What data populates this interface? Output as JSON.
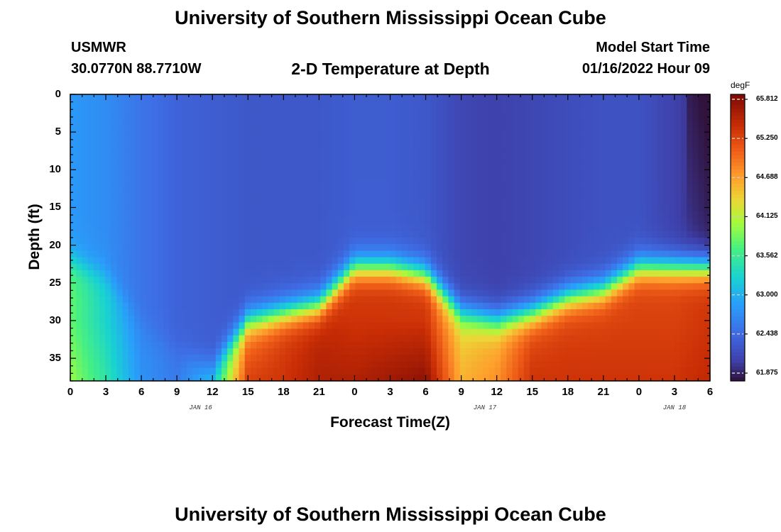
{
  "header": {
    "title": "University of Southern Mississippi Ocean Cube",
    "station": "USMWR",
    "coords": "30.0770N  88.7710W",
    "plot_title": "2-D Temperature at Depth",
    "model_start_label": "Model Start Time",
    "model_start_value": "01/16/2022 Hour 09"
  },
  "footer": {
    "title": "University of Southern Mississippi Ocean Cube"
  },
  "chart_data": {
    "type": "heatmap",
    "title": "2-D Temperature at Depth",
    "xlabel": "Forecast Time(Z)",
    "ylabel": "Depth (ft)",
    "x_ticks": [
      "0",
      "3",
      "6",
      "9",
      "12",
      "15",
      "18",
      "21",
      "0",
      "3",
      "6",
      "9",
      "12",
      "15",
      "18",
      "21",
      "0",
      "3",
      "6"
    ],
    "x_date_labels": [
      {
        "text": "JAN 16",
        "at_tick": 11
      },
      {
        "text": "JAN 17",
        "at_tick": 35
      },
      {
        "text": "JAN 18",
        "at_tick": 51
      }
    ],
    "x_range_hours": [
      0,
      54
    ],
    "y_ticks": [
      "0",
      "5",
      "10",
      "15",
      "20",
      "25",
      "30",
      "35"
    ],
    "y_range_ft": [
      0,
      38
    ],
    "colorbar": {
      "unit": "degF",
      "ticks": [
        "65.812",
        "65.250",
        "64.688",
        "64.125",
        "63.562",
        "63.000",
        "62.438",
        "61.875"
      ],
      "min": 61.8,
      "max": 65.9
    },
    "profiles_degF_by_hour": [
      {
        "hour": 0,
        "surface": 62.85,
        "deep": 63.8,
        "thermocline_ft": 22,
        "bottom_max": 64.0
      },
      {
        "hour": 3,
        "surface": 62.75,
        "deep": 63.3,
        "thermocline_ft": 24,
        "bottom_max": 63.5
      },
      {
        "hour": 6,
        "surface": 62.55,
        "deep": 62.7,
        "thermocline_ft": 30,
        "bottom_max": 62.8
      },
      {
        "hour": 9,
        "surface": 62.4,
        "deep": 62.55,
        "thermocline_ft": 34,
        "bottom_max": 62.6
      },
      {
        "hour": 12,
        "surface": 62.35,
        "deep": 62.6,
        "thermocline_ft": 36,
        "bottom_max": 63.2
      },
      {
        "hour": 15,
        "surface": 62.3,
        "deep": 64.9,
        "thermocline_ft": 30,
        "bottom_max": 65.3
      },
      {
        "hour": 18,
        "surface": 62.3,
        "deep": 65.3,
        "thermocline_ft": 29,
        "bottom_max": 65.4
      },
      {
        "hour": 21,
        "surface": 62.3,
        "deep": 65.5,
        "thermocline_ft": 28,
        "bottom_max": 65.6
      },
      {
        "hour": 24,
        "surface": 62.35,
        "deep": 65.4,
        "thermocline_ft": 23,
        "bottom_max": 65.6
      },
      {
        "hour": 27,
        "surface": 62.35,
        "deep": 65.4,
        "thermocline_ft": 23,
        "bottom_max": 65.7
      },
      {
        "hour": 30,
        "surface": 62.3,
        "deep": 65.4,
        "thermocline_ft": 24,
        "bottom_max": 65.8
      },
      {
        "hour": 33,
        "surface": 62.15,
        "deep": 64.4,
        "thermocline_ft": 29,
        "bottom_max": 64.6
      },
      {
        "hour": 36,
        "surface": 62.1,
        "deep": 64.6,
        "thermocline_ft": 30,
        "bottom_max": 64.8
      },
      {
        "hour": 39,
        "surface": 62.15,
        "deep": 65.2,
        "thermocline_ft": 29,
        "bottom_max": 65.4
      },
      {
        "hour": 42,
        "surface": 62.2,
        "deep": 65.3,
        "thermocline_ft": 27,
        "bottom_max": 65.4
      },
      {
        "hour": 45,
        "surface": 62.25,
        "deep": 65.3,
        "thermocline_ft": 26,
        "bottom_max": 65.4
      },
      {
        "hour": 48,
        "surface": 62.25,
        "deep": 65.3,
        "thermocline_ft": 23,
        "bottom_max": 65.4
      },
      {
        "hour": 51,
        "surface": 62.1,
        "deep": 65.3,
        "thermocline_ft": 23,
        "bottom_max": 65.4
      },
      {
        "hour": 54,
        "surface": 61.9,
        "deep": 65.4,
        "thermocline_ft": 23,
        "bottom_max": 65.5
      }
    ]
  }
}
